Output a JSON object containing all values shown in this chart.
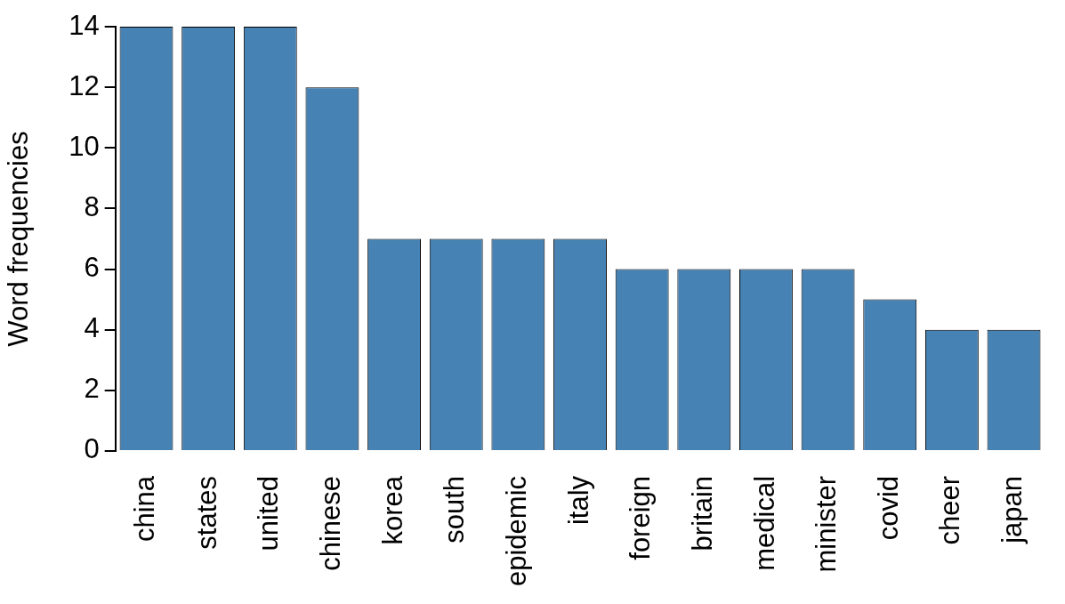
{
  "chart_data": {
    "type": "bar",
    "ylabel": "Word frequencies",
    "categories": [
      "china",
      "states",
      "united",
      "chinese",
      "korea",
      "south",
      "epidemic",
      "italy",
      "foreign",
      "britain",
      "medical",
      "minister",
      "covid",
      "cheer",
      "japan"
    ],
    "values": [
      14,
      14,
      14,
      12,
      7,
      7,
      7,
      7,
      6,
      6,
      6,
      6,
      5,
      4,
      4
    ],
    "color": "#4682b4",
    "ylim": [
      0,
      14
    ],
    "yticks": [
      0,
      2,
      4,
      6,
      8,
      10,
      12,
      14
    ],
    "grid": false,
    "legend": false
  }
}
